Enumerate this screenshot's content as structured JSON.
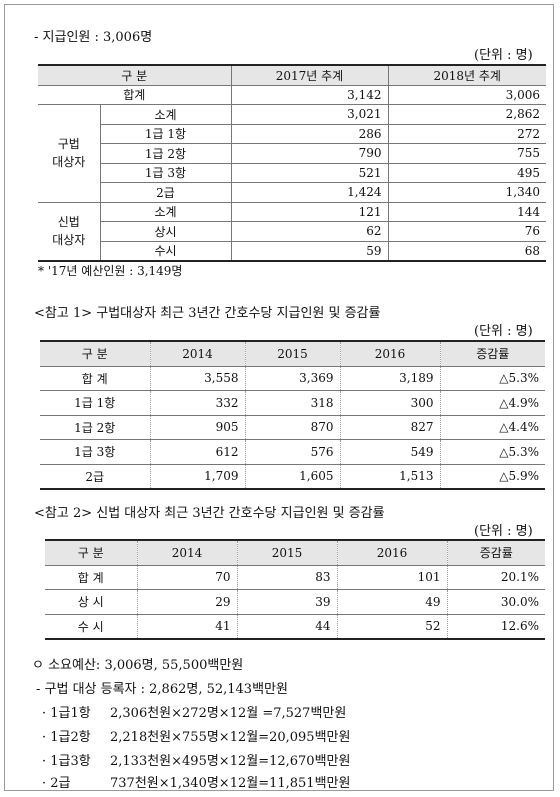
{
  "section1": {
    "heading": "- 지급인원 : 3,006명",
    "unit": "(단위 : 명)",
    "headers": [
      "구 분",
      "2017년 추계",
      "2018년 추계"
    ],
    "total": {
      "label": "합계",
      "v2017": "3,142",
      "v2018": "3,006"
    },
    "group_a": {
      "label_line1": "구법",
      "label_line2": "대상자",
      "rows": [
        {
          "label": "소계",
          "v2017": "3,021",
          "v2018": "2,862"
        },
        {
          "label": "1급 1항",
          "v2017": "286",
          "v2018": "272"
        },
        {
          "label": "1급 2항",
          "v2017": "790",
          "v2018": "755"
        },
        {
          "label": "1급 3항",
          "v2017": "521",
          "v2018": "495"
        },
        {
          "label": "2급",
          "v2017": "1,424",
          "v2018": "1,340"
        }
      ]
    },
    "group_b": {
      "label_line1": "신법",
      "label_line2": "대상자",
      "rows": [
        {
          "label": "소계",
          "v2017": "121",
          "v2018": "144"
        },
        {
          "label": "상시",
          "v2017": "62",
          "v2018": "76"
        },
        {
          "label": "수시",
          "v2017": "59",
          "v2018": "68"
        }
      ]
    },
    "footnote": "* '17년 예산인원 : 3,149명"
  },
  "ref1": {
    "title": "<참고 1> 구법대상자 최근 3년간 간호수당 지급인원 및 증감률",
    "unit": "(단위 : 명)",
    "headers": [
      "구 분",
      "2014",
      "2015",
      "2016",
      "증감률"
    ],
    "rows": [
      {
        "label": "합 계",
        "y2014": "3,558",
        "y2015": "3,369",
        "y2016": "3,189",
        "rate": "△5.3%"
      },
      {
        "label": "1급 1항",
        "y2014": "332",
        "y2015": "318",
        "y2016": "300",
        "rate": "△4.9%"
      },
      {
        "label": "1급 2항",
        "y2014": "905",
        "y2015": "870",
        "y2016": "827",
        "rate": "△4.4%"
      },
      {
        "label": "1급 3항",
        "y2014": "612",
        "y2015": "576",
        "y2016": "549",
        "rate": "△5.3%"
      },
      {
        "label": "2급",
        "y2014": "1,709",
        "y2015": "1,605",
        "y2016": "1,513",
        "rate": "△5.9%"
      }
    ]
  },
  "ref2": {
    "title": "<참고 2> 신법 대상자 최근 3년간 간호수당 지급인원 및 증감률",
    "unit": "(단위 : 명)",
    "headers": [
      "구 분",
      "2014",
      "2015",
      "2016",
      "증감률"
    ],
    "rows": [
      {
        "label": "합 계",
        "y2014": "70",
        "y2015": "83",
        "y2016": "101",
        "rate": "20.1%"
      },
      {
        "label": "상 시",
        "y2014": "29",
        "y2015": "39",
        "y2016": "49",
        "rate": "30.0%"
      },
      {
        "label": "수 시",
        "y2014": "41",
        "y2015": "44",
        "y2016": "52",
        "rate": "12.6%"
      }
    ]
  },
  "budget": {
    "heading": "ㅇ 소요예산: 3,006명, 55,500백만원",
    "sub": "- 구법 대상 등록자 : 2,862명, 52,143백만원",
    "items": [
      {
        "label": "· 1급1항",
        "calc": "2,306천원×272명×12월 =7,527백만원"
      },
      {
        "label": "· 1급2항",
        "calc": "2,218천원×755명×12월=20,095백만원"
      },
      {
        "label": "· 1급3항",
        "calc": "2,133천원×495명×12월=12,670백만원"
      },
      {
        "label": "· 2급",
        "calc": "737천원×1,340명×12월=11,851백만원"
      }
    ]
  }
}
